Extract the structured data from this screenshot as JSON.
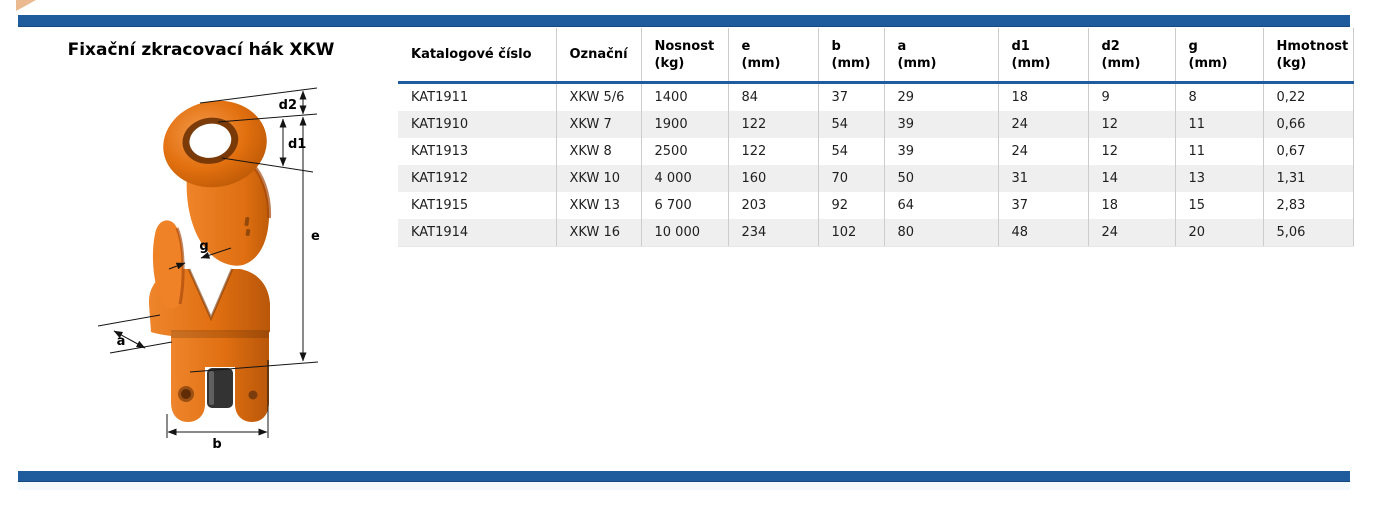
{
  "title": "Fixační zkracovací hák XKW",
  "figure": {
    "labels": {
      "d2": "d2",
      "d1": "d1",
      "e": "e",
      "g": "g",
      "a": "a",
      "b": "b"
    }
  },
  "table": {
    "columns": [
      {
        "label": "Katalogové číslo"
      },
      {
        "label": "Označní"
      },
      {
        "label": "Nosnost\n(kg)"
      },
      {
        "label": "e\n(mm)"
      },
      {
        "label": "b\n(mm)"
      },
      {
        "label": "a\n(mm)"
      },
      {
        "label": "d1\n(mm)"
      },
      {
        "label": "d2\n(mm)"
      },
      {
        "label": "g\n(mm)"
      },
      {
        "label": "Hmotnost\n(kg)"
      }
    ],
    "rows": [
      [
        "KAT1911",
        "XKW 5/6",
        "1400",
        "84",
        "37",
        "29",
        "18",
        "9",
        "8",
        "0,22"
      ],
      [
        "KAT1910",
        "XKW 7",
        "1900",
        "122",
        "54",
        "39",
        "24",
        "12",
        "11",
        "0,66"
      ],
      [
        "KAT1913",
        "XKW 8",
        "2500",
        "122",
        "54",
        "39",
        "24",
        "12",
        "11",
        "0,67"
      ],
      [
        "KAT1912",
        "XKW 10",
        "4 000",
        "160",
        "70",
        "50",
        "31",
        "14",
        "13",
        "1,31"
      ],
      [
        "KAT1915",
        "XKW 13",
        "6 700",
        "203",
        "92",
        "64",
        "37",
        "18",
        "15",
        "2,83"
      ],
      [
        "KAT1914",
        "XKW 16",
        "10 000",
        "234",
        "102",
        "80",
        "48",
        "24",
        "20",
        "5,06"
      ]
    ]
  },
  "colors": {
    "bar_blue": "#1e5c9e",
    "row_alt": "#efefef",
    "hook_orange": "#e6761c",
    "column_divider": "#cccccc"
  }
}
